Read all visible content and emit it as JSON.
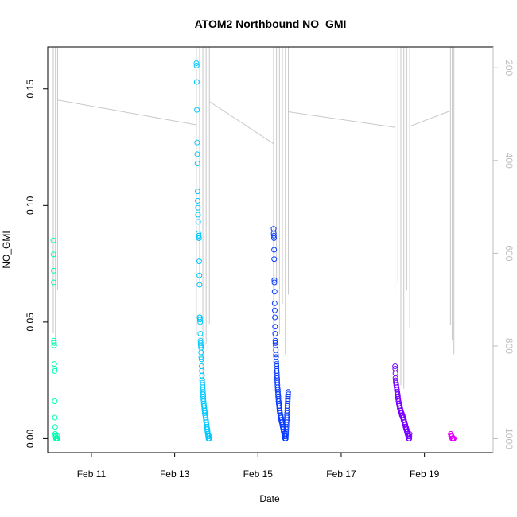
{
  "chart_data": {
    "type": "scatter",
    "title": "ATOM2 Northbound NO_GMI",
    "xlabel": "Date",
    "ylabel": "NO_GMI",
    "x_axis": {
      "unit": "date",
      "lim": [
        "2016-02-09T22:48",
        "2016-02-20T15:36"
      ],
      "ticks": [
        "2016-02-11",
        "2016-02-13",
        "2016-02-15",
        "2016-02-17",
        "2016-02-19"
      ],
      "tick_labels": [
        "Feb 11",
        "Feb 13",
        "Feb 15",
        "Feb 17",
        "Feb 19"
      ]
    },
    "y_axis": {
      "lim": [
        -0.006,
        0.168
      ],
      "ticks": [
        0.0,
        0.05,
        0.1,
        0.15
      ],
      "tick_labels": [
        "0.00",
        "0.05",
        "0.10",
        "0.15"
      ]
    },
    "right_axis": {
      "description": "altitude / pressure overlay, inverted scale",
      "lim": [
        1030,
        155
      ],
      "ticks": [
        200,
        400,
        600,
        800,
        1000
      ],
      "tick_labels": [
        "200",
        "400",
        "600",
        "800",
        "1000"
      ],
      "color": "#bdbdbd"
    },
    "grid": false,
    "flights": [
      {
        "start": "2016-02-10T02:00",
        "end": "2016-02-10T04:30",
        "color": "#00ffb0",
        "y": [
          0.085,
          0.079,
          0.072,
          0.067,
          0.042,
          0.041,
          0.04,
          0.032,
          0.03,
          0.029,
          0.016,
          0.009,
          0.005,
          0.002,
          0.002,
          0.001,
          0.001,
          0.001,
          0.0,
          0.0,
          0.0,
          0.0,
          0.0,
          0.0,
          0.0,
          0.0,
          0.0,
          0.0,
          0.001,
          0.0
        ]
      },
      {
        "start": "2016-02-13T12:30",
        "end": "2016-02-13T20:00",
        "color": "#00c8ff",
        "y": [
          0.161,
          0.16,
          0.153,
          0.141,
          0.127,
          0.122,
          0.118,
          0.106,
          0.102,
          0.099,
          0.096,
          0.093,
          0.088,
          0.087,
          0.087,
          0.086,
          0.086,
          0.076,
          0.07,
          0.066,
          0.052,
          0.052,
          0.051,
          0.05,
          0.045,
          0.042,
          0.041,
          0.04,
          0.039,
          0.037,
          0.035,
          0.034,
          0.031,
          0.029,
          0.027,
          0.025,
          0.024,
          0.023,
          0.022,
          0.021,
          0.02,
          0.019,
          0.018,
          0.017,
          0.016,
          0.015,
          0.014,
          0.014,
          0.013,
          0.013,
          0.012,
          0.012,
          0.011,
          0.011,
          0.01,
          0.01,
          0.009,
          0.009,
          0.008,
          0.008,
          0.007,
          0.007,
          0.006,
          0.006,
          0.005,
          0.005,
          0.004,
          0.004,
          0.003,
          0.003,
          0.002,
          0.002,
          0.001,
          0.001,
          0.0,
          0.0,
          0.0,
          0.0,
          0.001,
          0.0
        ]
      },
      {
        "start": "2016-02-15T09:00",
        "end": "2016-02-15T17:30",
        "color": "#0a3cff",
        "y": [
          0.09,
          0.088,
          0.087,
          0.086,
          0.081,
          0.077,
          0.068,
          0.067,
          0.063,
          0.058,
          0.055,
          0.052,
          0.048,
          0.045,
          0.042,
          0.041,
          0.041,
          0.04,
          0.038,
          0.036,
          0.035,
          0.033,
          0.032,
          0.031,
          0.03,
          0.029,
          0.028,
          0.027,
          0.026,
          0.025,
          0.024,
          0.023,
          0.022,
          0.021,
          0.021,
          0.02,
          0.019,
          0.018,
          0.018,
          0.017,
          0.016,
          0.016,
          0.015,
          0.015,
          0.014,
          0.014,
          0.013,
          0.013,
          0.012,
          0.012,
          0.012,
          0.011,
          0.011,
          0.011,
          0.01,
          0.01,
          0.01,
          0.01,
          0.009,
          0.009,
          0.009,
          0.009,
          0.008,
          0.008,
          0.008,
          0.008,
          0.007,
          0.007,
          0.007,
          0.007,
          0.006,
          0.006,
          0.006,
          0.006,
          0.005,
          0.005,
          0.005,
          0.005,
          0.004,
          0.004,
          0.004,
          0.004,
          0.003,
          0.003,
          0.003,
          0.003,
          0.002,
          0.002,
          0.002,
          0.002,
          0.001,
          0.001,
          0.001,
          0.001,
          0.0,
          0.0,
          0.0,
          0.0,
          0.0,
          0.0,
          0.001,
          0.002,
          0.003,
          0.004,
          0.005,
          0.006,
          0.007,
          0.008,
          0.009,
          0.01,
          0.011,
          0.012,
          0.013,
          0.014,
          0.015,
          0.016,
          0.017,
          0.018,
          0.019,
          0.02
        ]
      },
      {
        "start": "2016-02-18T07:00",
        "end": "2016-02-18T15:30",
        "color": "#7a00ff",
        "y": [
          0.031,
          0.03,
          0.028,
          0.026,
          0.025,
          0.024,
          0.024,
          0.023,
          0.023,
          0.022,
          0.022,
          0.021,
          0.021,
          0.02,
          0.02,
          0.019,
          0.019,
          0.018,
          0.018,
          0.017,
          0.017,
          0.016,
          0.016,
          0.015,
          0.015,
          0.015,
          0.014,
          0.014,
          0.014,
          0.013,
          0.013,
          0.013,
          0.013,
          0.012,
          0.012,
          0.012,
          0.012,
          0.011,
          0.011,
          0.011,
          0.011,
          0.011,
          0.01,
          0.01,
          0.01,
          0.01,
          0.01,
          0.009,
          0.009,
          0.009,
          0.009,
          0.009,
          0.008,
          0.008,
          0.008,
          0.008,
          0.007,
          0.007,
          0.007,
          0.007,
          0.006,
          0.006,
          0.006,
          0.006,
          0.005,
          0.005,
          0.005,
          0.005,
          0.004,
          0.004,
          0.004,
          0.004,
          0.003,
          0.003,
          0.003,
          0.003,
          0.002,
          0.002,
          0.002,
          0.002,
          0.001,
          0.001,
          0.001,
          0.001,
          0.0,
          0.0,
          0.0,
          0.0,
          0.001,
          0.002
        ]
      },
      {
        "start": "2016-02-19T15:00",
        "end": "2016-02-19T17:00",
        "color": "#e600ff",
        "y": [
          0.002,
          0.002,
          0.001,
          0.001,
          0.001,
          0.001,
          0.0,
          0.0,
          0.0,
          0.0,
          0.0,
          0.0
        ]
      }
    ]
  }
}
